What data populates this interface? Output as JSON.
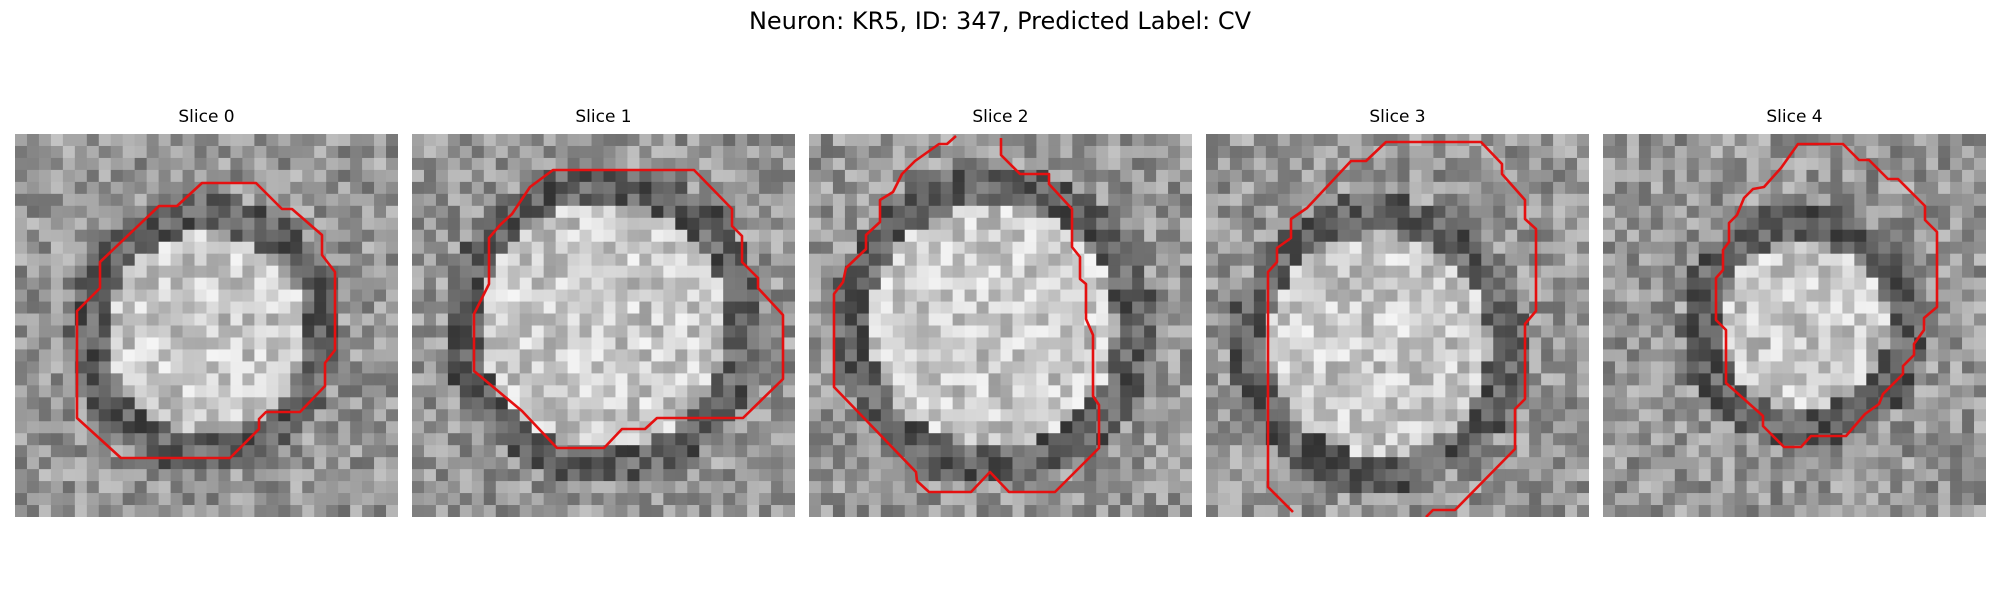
{
  "figure": {
    "title": "Neuron: KR5, ID: 347, Predicted Label: CV"
  },
  "colors": {
    "contour": "#e51010",
    "background": "#ffffff",
    "text": "#000000"
  },
  "panels": [
    {
      "label": "Slice 0"
    },
    {
      "label": "Slice 1"
    },
    {
      "label": "Slice 2"
    },
    {
      "label": "Slice 3"
    },
    {
      "label": "Slice 4"
    }
  ]
}
